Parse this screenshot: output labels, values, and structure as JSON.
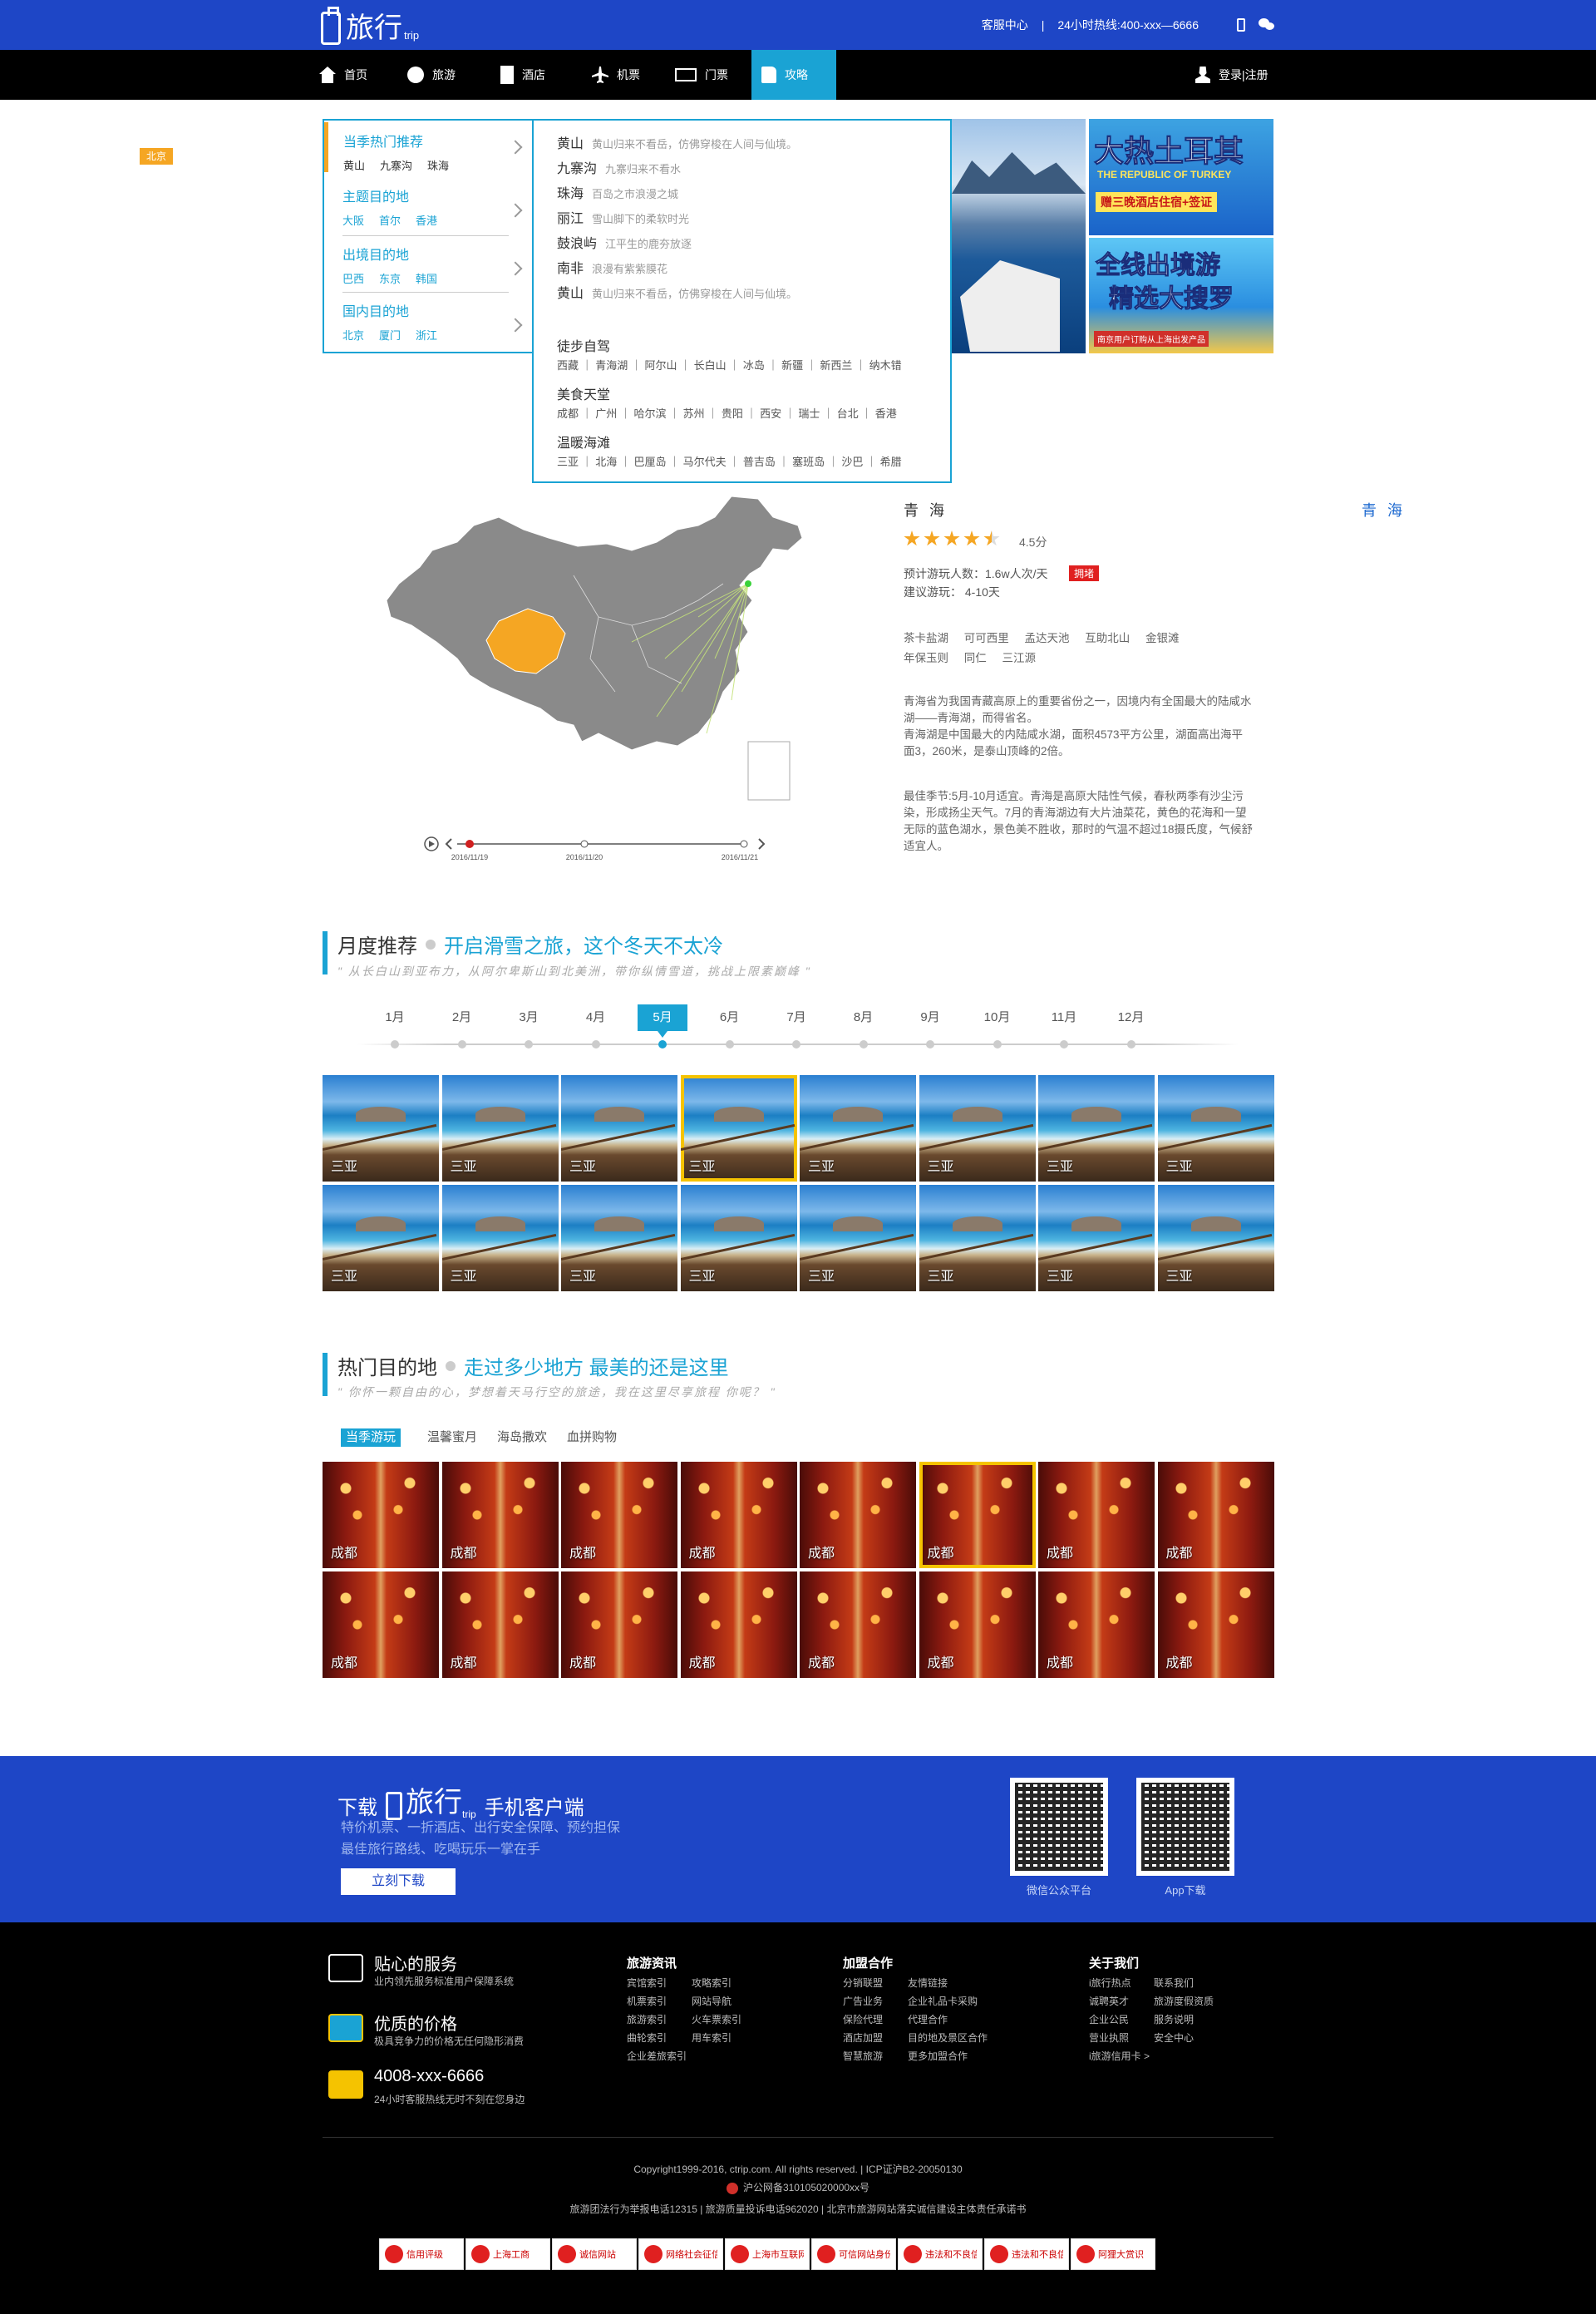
{
  "header": {
    "logo_text": "旅行",
    "logo_sub": "trip",
    "service_center": "客服中心",
    "separator": "|",
    "hotline": "24小时热线:400-xxx—6666",
    "brand_color": "#1e46c6"
  },
  "nav": {
    "items": [
      {
        "label": "首页",
        "icon": "home-icon"
      },
      {
        "label": "旅游",
        "icon": "globe-icon"
      },
      {
        "label": "酒店",
        "icon": "hotel-icon"
      },
      {
        "label": "机票",
        "icon": "plane-icon"
      },
      {
        "label": "门票",
        "icon": "ticket-icon"
      },
      {
        "label": "攻略",
        "icon": "book-icon",
        "active": true
      }
    ],
    "login": "登录|注册",
    "active_color": "#1aa3d4"
  },
  "city_tag": "北京",
  "menu": {
    "sections": [
      {
        "title": "当季热门推荐",
        "items": [
          "黄山",
          "九寨沟",
          "珠海"
        ]
      },
      {
        "title": "主题目的地",
        "items": [
          "大阪",
          "首尔",
          "香港"
        ]
      },
      {
        "title": "出境目的地",
        "items": [
          "巴西",
          "东京",
          "韩国"
        ]
      },
      {
        "title": "国内目的地",
        "items": [
          "北京",
          "厦门",
          "浙江"
        ]
      }
    ]
  },
  "flyout": {
    "rows": [
      {
        "name": "黄山",
        "desc": "黄山归来不看岳，仿佛穿梭在人间与仙境。"
      },
      {
        "name": "九寨沟",
        "desc": "九寨归来不看水"
      },
      {
        "name": "珠海",
        "desc": "百岛之市浪漫之城"
      },
      {
        "name": "丽江",
        "desc": "雪山脚下的柔软时光"
      },
      {
        "name": "鼓浪屿",
        "desc": "江平生的鹿夯放逐"
      },
      {
        "name": "南非",
        "desc": "浪漫有紫紫膜花"
      },
      {
        "name": "黄山",
        "desc": "黄山归来不看岳，仿佛穿梭在人间与仙境。"
      }
    ],
    "groups": [
      {
        "title": "徒步自驾",
        "list": "西藏 ｜ 青海湖 ｜ 阿尔山 ｜ 长白山 ｜ 冰岛 ｜ 新疆 ｜ 新西兰 ｜ 纳木错"
      },
      {
        "title": "美食天堂",
        "list": "成都 ｜ 广州 ｜ 哈尔滨 ｜ 苏州 ｜ 贵阳 ｜ 西安 ｜ 瑞士 ｜ 台北 ｜ 香港"
      },
      {
        "title": "温暖海滩",
        "list": "三亚 ｜ 北海 ｜ 巴厘岛 ｜ 马尔代夫 ｜ 普吉岛 ｜ 塞班岛 ｜ 沙巴 ｜ 希腊"
      }
    ]
  },
  "banners": {
    "turkey_line1": "大热土耳其",
    "turkey_line2": "THE REPUBLIC OF TURKEY",
    "turkey_line3": "赠三晚酒店住宿+签证",
    "outbound_line1": "全线出境游",
    "outbound_line2": "精选大搜罗",
    "outbound_line3": "南京用户订购从上海出发产品"
  },
  "timeline": {
    "dates": [
      "2016/11/19",
      "2016/11/20",
      "2016/11/21"
    ]
  },
  "info": {
    "title": "青 海",
    "link": "青 海",
    "rating": 4.5,
    "score": "4.5分",
    "visitors": "预计游玩人数：1.6w人次/天",
    "crowd": "拥堵",
    "duration": "建议游玩：  4-10天",
    "spots_line1": "茶卡盐湖     可可西里     孟达天池     互助北山     金银滩",
    "spots_line2": "年保玉则     同仁     三江源",
    "para1": "青海省为我国青藏高原上的重要省份之一，因境内有全国最大的陆咸水湖——青海湖，而得省名。",
    "para2": "青海湖是中国最大的内陆咸水湖，面积4573平方公里，湖面高出海平面3，260米，是泰山顶峰的2倍。",
    "para3": "最佳季节:5月-10月适宜。青海是高原大陆性气候，春秋两季有沙尘污染，形成扬尘天气。7月的青海湖边有大片油菜花，黄色的花海和一望无际的蓝色湖水，景色美不胜收，那时的气温不超过18摄氏度，气候舒适宜人。",
    "highlight_color": "#f5a623"
  },
  "monthly": {
    "title": "月度推荐",
    "highlight": "开启滑雪之旅，这个冬天不太冷",
    "subtitle": "\" 从长白山到亚布力，从阿尔卑斯山到北美洲，带你纵情雪道，挑战上限素巅峰 \"",
    "months": [
      "1月",
      "2月",
      "3月",
      "4月",
      "5月",
      "6月",
      "7月",
      "8月",
      "9月",
      "10月",
      "11月",
      "12月"
    ],
    "active_month": 4,
    "tiles": [
      "三亚",
      "三亚",
      "三亚",
      "三亚",
      "三亚",
      "三亚",
      "三亚",
      "三亚",
      "三亚",
      "三亚",
      "三亚",
      "三亚",
      "三亚",
      "三亚",
      "三亚",
      "三亚"
    ],
    "selected_tile": 3
  },
  "hot": {
    "title": "热门目的地",
    "highlight": "走过多少地方  最美的还是这里",
    "subtitle": "\" 你怀一颗自由的心，梦想着天马行空的旅途，我在这里尽享旅程  你呢？ \"",
    "tabs": [
      "当季游玩",
      "温馨蜜月",
      "海岛撒欢",
      "血拼购物"
    ],
    "active_tab": 0,
    "tiles": [
      "成都",
      "成都",
      "成都",
      "成都",
      "成都",
      "成都",
      "成都",
      "成都",
      "成都",
      "成都",
      "成都",
      "成都",
      "成都",
      "成都",
      "成都",
      "成都"
    ],
    "selected_tile": 5
  },
  "download": {
    "prefix": "下载",
    "logo_text": "旅行",
    "logo_sub": "trip",
    "suffix": "手机客户端",
    "line1": "特价机票、一折酒店、出行安全保障、预约担保",
    "line2": "最佳旅行路线、吃喝玩乐一掌在手",
    "button": "立刻下载",
    "qr1_label": "微信公众平台",
    "qr2_label": "App下载"
  },
  "footer": {
    "services": [
      {
        "title": "贴心的服务",
        "desc": "业内领先服务标准用户保障系统",
        "icon": "service-card-icon"
      },
      {
        "title": "优质的价格",
        "desc": "极具竞争力的价格无任何隐形消费",
        "icon": "credit-card-icon"
      },
      {
        "title": "4008-xxx-6666",
        "desc": "24小时客服热线无时不刻在您身边",
        "icon": "fax-phone-icon"
      }
    ],
    "columns": [
      {
        "title": "旅游资讯",
        "items": [
          "宾馆索引",
          "攻略索引",
          "机票索引",
          "网站导航",
          "旅游索引",
          "火车票索引",
          "曲轮索引",
          "用车索引",
          "企业差旅索引"
        ]
      },
      {
        "title": "加盟合作",
        "items": [
          "分销联盟",
          "友情链接",
          "广告业务",
          "企业礼品卡采购",
          "保险代理",
          "代理合作",
          "酒店加盟",
          "目的地及景区合作",
          "智慧旅游",
          "更多加盟合作"
        ]
      },
      {
        "title": "关于我们",
        "items": [
          "i旅行热点",
          "联系我们",
          "诚聘英才",
          "旅游度假资质",
          "企业公民",
          "服务说明",
          "营业执照",
          "安全中心",
          "i旅游信用卡 >"
        ]
      }
    ],
    "copyright": "Copyright1999-2016, ctrip.com. All rights reserved. | ICP证沪B2-20050130",
    "police": "沪公网备310105020000xx号",
    "law": "旅游团法行为举报电话12315 | 旅游质量投诉电话962020 | 北京市旅游网站落实诚信建设主体责任承诺书",
    "badges": [
      "信用评级",
      "上海工商",
      "诚信网站",
      "网络社会征信网",
      "上海市互联网违法和不良信息举报中心",
      "可信网站身份验证",
      "违法和不良信息举报中心",
      "违法和不良信息举报电话",
      "阿狸大赏识"
    ]
  }
}
